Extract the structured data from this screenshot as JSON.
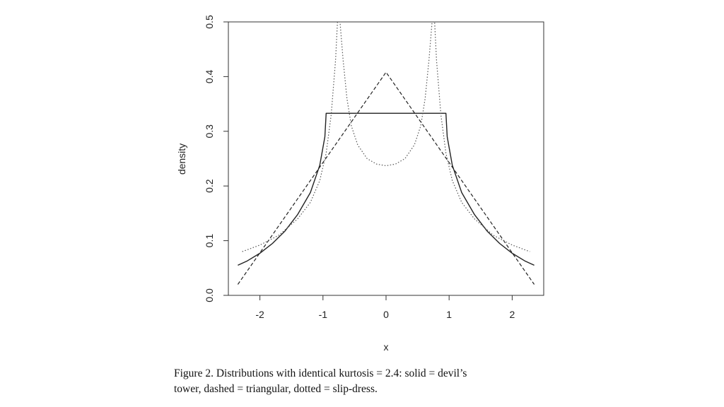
{
  "caption": {
    "line1": "Figure 2.   Distributions with identical kurtosis = 2.4: solid = devil’s",
    "line2": "tower, dashed = triangular, dotted = slip-dress."
  },
  "chart_data": {
    "type": "line",
    "title": "",
    "xlabel": "x",
    "ylabel": "density",
    "xlim": [
      -2.5,
      2.5
    ],
    "ylim": [
      0.0,
      0.5
    ],
    "x_ticks": [
      "-2",
      "-1",
      "0",
      "1",
      "2"
    ],
    "y_ticks": [
      "0.0",
      "0.1",
      "0.2",
      "0.3",
      "0.4",
      "0.5"
    ],
    "grid": false,
    "legend": "none",
    "series": [
      {
        "style": "solid",
        "color": "#222222",
        "points": [
          [
            -2.35,
            0.055
          ],
          [
            -2.2,
            0.063
          ],
          [
            -2.0,
            0.077
          ],
          [
            -1.8,
            0.095
          ],
          [
            -1.6,
            0.118
          ],
          [
            -1.4,
            0.148
          ],
          [
            -1.2,
            0.188
          ],
          [
            -1.05,
            0.238
          ],
          [
            -0.97,
            0.29
          ],
          [
            -0.95,
            0.333
          ],
          [
            0.95,
            0.333
          ],
          [
            0.97,
            0.29
          ],
          [
            1.05,
            0.238
          ],
          [
            1.2,
            0.188
          ],
          [
            1.4,
            0.148
          ],
          [
            1.6,
            0.118
          ],
          [
            1.8,
            0.095
          ],
          [
            2.0,
            0.077
          ],
          [
            2.2,
            0.063
          ],
          [
            2.35,
            0.055
          ]
        ]
      },
      {
        "style": "dashed",
        "color": "#222222",
        "points": [
          [
            -2.35,
            0.02
          ],
          [
            0.0,
            0.408
          ],
          [
            2.35,
            0.02
          ]
        ]
      },
      {
        "style": "dotted",
        "color": "#555555",
        "points": [
          [
            -2.28,
            0.08
          ],
          [
            -2.0,
            0.092
          ],
          [
            -1.7,
            0.11
          ],
          [
            -1.4,
            0.14
          ],
          [
            -1.2,
            0.17
          ],
          [
            -1.05,
            0.21
          ],
          [
            -0.95,
            0.26
          ],
          [
            -0.87,
            0.33
          ],
          [
            -0.8,
            0.43
          ],
          [
            -0.77,
            0.5
          ],
          [
            -0.73,
            0.5
          ],
          [
            -0.68,
            0.43
          ],
          [
            -0.62,
            0.36
          ],
          [
            -0.55,
            0.31
          ],
          [
            -0.45,
            0.275
          ],
          [
            -0.3,
            0.25
          ],
          [
            -0.15,
            0.24
          ],
          [
            0.0,
            0.237
          ],
          [
            0.15,
            0.24
          ],
          [
            0.3,
            0.25
          ],
          [
            0.45,
            0.275
          ],
          [
            0.55,
            0.31
          ],
          [
            0.62,
            0.36
          ],
          [
            0.68,
            0.43
          ],
          [
            0.73,
            0.5
          ],
          [
            0.77,
            0.5
          ],
          [
            0.8,
            0.43
          ],
          [
            0.87,
            0.33
          ],
          [
            0.95,
            0.26
          ],
          [
            1.05,
            0.21
          ],
          [
            1.2,
            0.17
          ],
          [
            1.4,
            0.14
          ],
          [
            1.7,
            0.11
          ],
          [
            2.0,
            0.092
          ],
          [
            2.28,
            0.08
          ]
        ]
      }
    ]
  }
}
